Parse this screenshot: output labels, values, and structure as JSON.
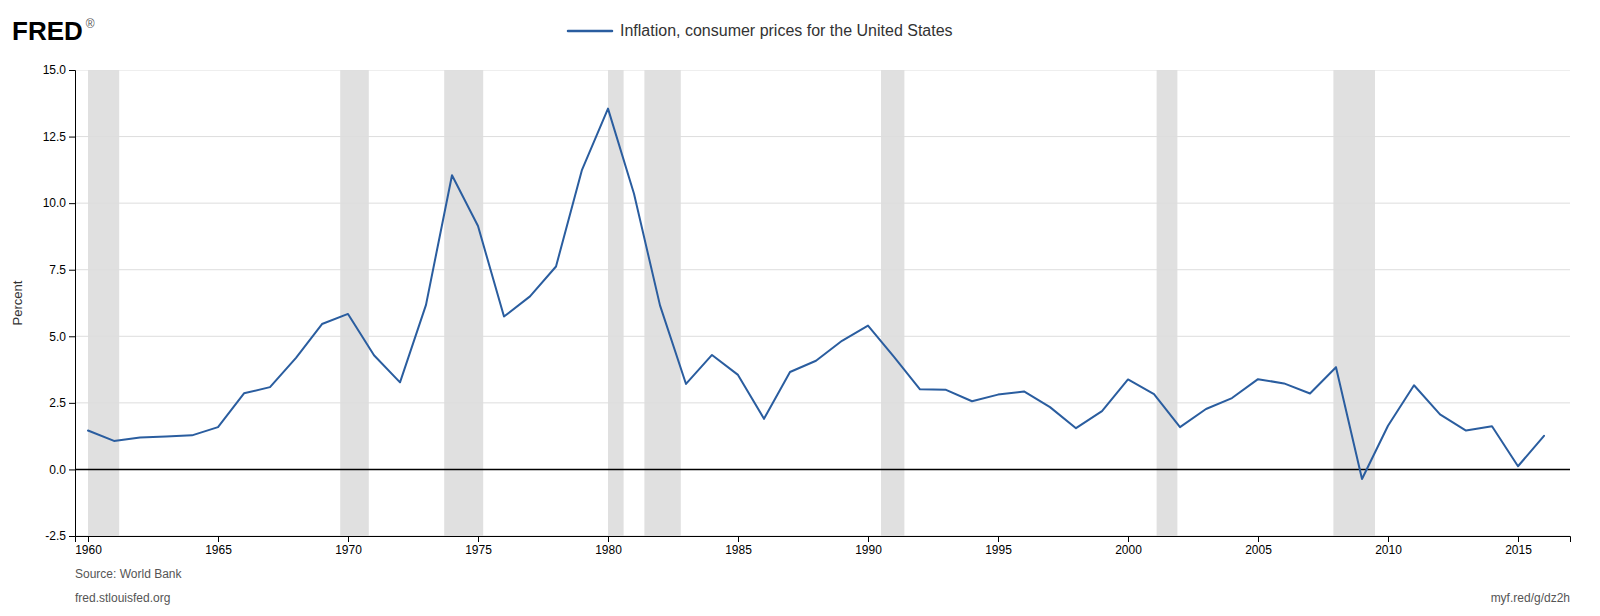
{
  "chart_data": {
    "type": "line",
    "title": "Inflation, consumer prices for the United States",
    "ylabel": "Percent",
    "annotations": [
      "FRED",
      "®",
      "Source: World Bank",
      "fred.stlouisfed.org",
      "myf.red/g/dz2h"
    ],
    "x": [
      1960,
      1961,
      1962,
      1963,
      1964,
      1965,
      1966,
      1967,
      1968,
      1969,
      1970,
      1971,
      1972,
      1973,
      1974,
      1975,
      1976,
      1977,
      1978,
      1979,
      1980,
      1981,
      1982,
      1983,
      1984,
      1985,
      1986,
      1987,
      1988,
      1989,
      1990,
      1991,
      1992,
      1993,
      1994,
      1995,
      1996,
      1997,
      1998,
      1999,
      2000,
      2001,
      2002,
      2003,
      2004,
      2005,
      2006,
      2007,
      2008,
      2009,
      2010,
      2011,
      2012,
      2013,
      2014,
      2015,
      2016
    ],
    "series": [
      {
        "color": "#2a5d9f",
        "values": [
          1.46,
          1.07,
          1.2,
          1.24,
          1.28,
          1.59,
          2.86,
          3.09,
          4.19,
          5.46,
          5.84,
          4.29,
          3.27,
          6.18,
          11.05,
          9.14,
          5.74,
          6.5,
          7.62,
          11.25,
          13.55,
          10.35,
          6.16,
          3.21,
          4.3,
          3.55,
          1.9,
          3.66,
          4.08,
          4.83,
          5.4,
          4.23,
          3.01,
          2.99,
          2.56,
          2.81,
          2.93,
          2.34,
          1.55,
          2.19,
          3.38,
          2.83,
          1.59,
          2.27,
          2.68,
          3.39,
          3.23,
          2.85,
          3.84,
          -0.36,
          1.64,
          3.16,
          2.07,
          1.46,
          1.62,
          0.12,
          1.26
        ]
      }
    ],
    "recession_bands": {
      "color": "#e0e0e0",
      "ranges": [
        [
          1960.0,
          1961.2
        ],
        [
          1969.7,
          1970.8
        ],
        [
          1973.7,
          1975.2
        ],
        [
          1980.0,
          1980.6
        ],
        [
          1981.4,
          1982.8
        ],
        [
          1990.5,
          1991.4
        ],
        [
          2001.1,
          2001.9
        ],
        [
          2007.9,
          2009.5
        ]
      ]
    },
    "xlim": [
      1959.5,
      2017.0
    ],
    "ylim": [
      -2.5,
      15.0
    ],
    "xticks": [
      1960,
      1965,
      1970,
      1975,
      1980,
      1985,
      1990,
      1995,
      2000,
      2005,
      2010,
      2015
    ],
    "yticks": [
      -2.5,
      {
        "value": 0.0,
        "label": "0.0"
      },
      2.5,
      {
        "value": 5.0,
        "label": "5.0"
      },
      7.5,
      {
        "value": 10.0,
        "label": "10.0"
      },
      12.5,
      {
        "value": 15.0,
        "label": "15.0"
      }
    ],
    "grid": true
  }
}
